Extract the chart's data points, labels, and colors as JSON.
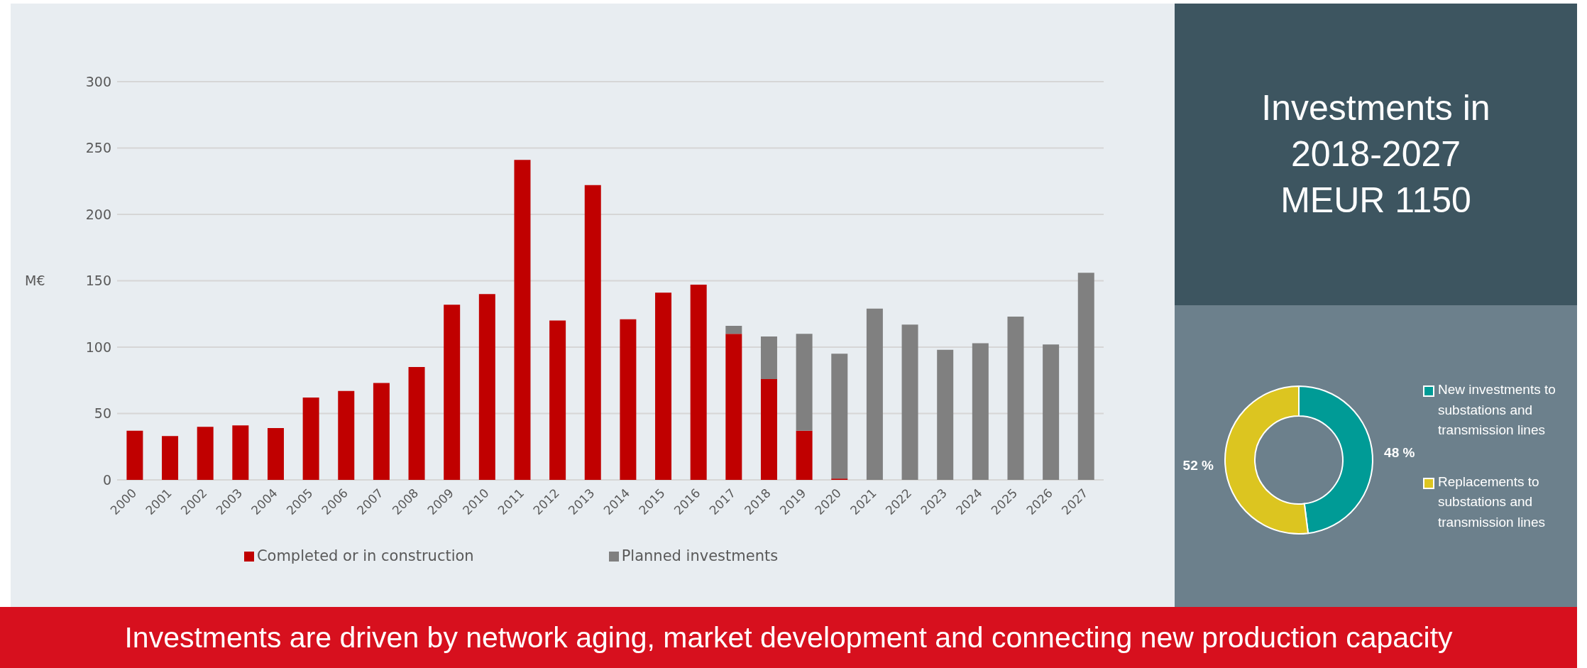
{
  "chart_data": [
    {
      "type": "bar",
      "stacked": true,
      "ylabel": "M€",
      "categories": [
        "2000",
        "2001",
        "2002",
        "2003",
        "2004",
        "2005",
        "2006",
        "2007",
        "2008",
        "2009",
        "2010",
        "2011",
        "2012",
        "2013",
        "2014",
        "2015",
        "2016",
        "2017",
        "2018",
        "2019",
        "2020",
        "2021",
        "2022",
        "2023",
        "2024",
        "2025",
        "2026",
        "2027"
      ],
      "series": [
        {
          "name": "Completed or in construction",
          "color": "#c00000",
          "values": [
            37,
            33,
            40,
            41,
            39,
            62,
            67,
            73,
            85,
            132,
            140,
            241,
            120,
            222,
            121,
            141,
            147,
            110,
            76,
            37,
            1,
            null,
            null,
            null,
            null,
            null,
            null,
            null
          ]
        },
        {
          "name": "Planned investments",
          "color": "#808080",
          "values": [
            null,
            null,
            null,
            null,
            null,
            null,
            null,
            null,
            null,
            null,
            null,
            null,
            null,
            null,
            null,
            null,
            null,
            6,
            32,
            73,
            94,
            129,
            117,
            98,
            103,
            123,
            102,
            156
          ]
        }
      ],
      "ylim": [
        0,
        300
      ],
      "yticks": [
        0,
        50,
        100,
        150,
        200,
        250,
        300
      ],
      "grid": "y",
      "legend": "bottom",
      "annotations": [
        "Investments are driven by network aging, market development and connecting new production capacity"
      ]
    },
    {
      "type": "other",
      "title": "Investments in\n2018-2027\nMEUR 1150"
    },
    {
      "type": "donut",
      "categories": [
        "New investments to substations and transmission lines",
        "Replacements to substations and transmission lines"
      ],
      "values": [
        48,
        52
      ],
      "colors": [
        "#009b96",
        "#dcc520"
      ],
      "value_labels": [
        "48 %",
        "52 %"
      ],
      "legend": "right"
    }
  ]
}
